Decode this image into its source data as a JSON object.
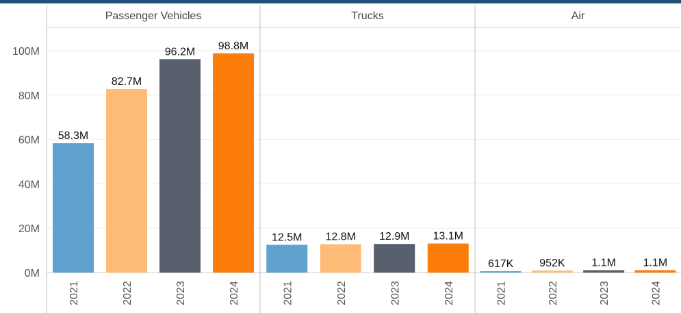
{
  "chart_data": {
    "type": "bar",
    "xlabel": "",
    "ylabel": "",
    "ylim": [
      0,
      112000000
    ],
    "yticks": [
      {
        "value": 0,
        "label": "0M"
      },
      {
        "value": 20000000,
        "label": "20M"
      },
      {
        "value": 40000000,
        "label": "40M"
      },
      {
        "value": 60000000,
        "label": "60M"
      },
      {
        "value": 80000000,
        "label": "80M"
      },
      {
        "value": 100000000,
        "label": "100M"
      }
    ],
    "grid": true,
    "categories": [
      "2021",
      "2022",
      "2023",
      "2024"
    ],
    "colors": [
      "#5fa2ce",
      "#ffbc79",
      "#57606c",
      "#fc7d0b"
    ],
    "panels": [
      {
        "name": "Passenger Vehicles",
        "values": [
          58300000,
          82700000,
          96200000,
          98800000
        ],
        "labels": [
          "58.3M",
          "82.7M",
          "96.2M",
          "98.8M"
        ]
      },
      {
        "name": "Trucks",
        "values": [
          12500000,
          12800000,
          12900000,
          13100000
        ],
        "labels": [
          "12.5M",
          "12.8M",
          "12.9M",
          "13.1M"
        ]
      },
      {
        "name": "Air",
        "values": [
          617000,
          952000,
          1100000,
          1100000
        ],
        "labels": [
          "617K",
          "952K",
          "1.1M",
          "1.1M"
        ]
      }
    ]
  }
}
